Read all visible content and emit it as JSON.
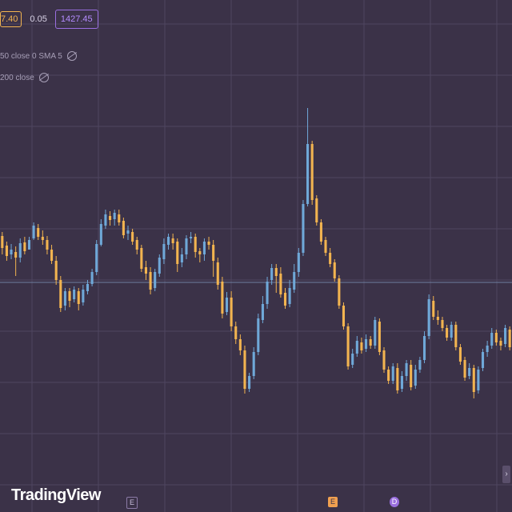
{
  "header": {
    "price_low": "7.40",
    "price_change": "0.05",
    "price_high": "1427.45"
  },
  "indicators": [
    {
      "label": "50 close 0 SMA 5",
      "icon": "eye-slash-icon"
    },
    {
      "label": "200 close",
      "icon": "eye-slash-icon"
    }
  ],
  "footer": {
    "logo": "TradingView",
    "events": [
      {
        "label": "E",
        "color": "#8b7aa6"
      },
      {
        "label": "E",
        "color": "#f0a050"
      },
      {
        "label": "D",
        "color": "#9a6fe0"
      }
    ]
  },
  "colors": {
    "background": "#3b3248",
    "up": "#6fa8d8",
    "down": "#f2b450",
    "grid": "#4f4660",
    "price_line": "#6f7fa0"
  },
  "chart_data": {
    "type": "candlestick",
    "title": "",
    "xlabel": "",
    "ylabel": "",
    "ylim": [
      0,
      640
    ],
    "reference_line": 353,
    "candles": [
      [
        295,
        310,
        290,
        318
      ],
      [
        307,
        320,
        302,
        326
      ],
      [
        318,
        312,
        305,
        324
      ],
      [
        315,
        322,
        308,
        345
      ],
      [
        322,
        304,
        298,
        328
      ],
      [
        303,
        314,
        296,
        318
      ],
      [
        312,
        300,
        296,
        306
      ],
      [
        298,
        282,
        278,
        300
      ],
      [
        285,
        296,
        280,
        300
      ],
      [
        296,
        300,
        288,
        306
      ],
      [
        300,
        312,
        295,
        318
      ],
      [
        312,
        326,
        306,
        330
      ],
      [
        326,
        350,
        320,
        356
      ],
      [
        350,
        385,
        345,
        390
      ],
      [
        382,
        364,
        360,
        388
      ],
      [
        364,
        376,
        360,
        384
      ],
      [
        374,
        362,
        358,
        378
      ],
      [
        364,
        380,
        360,
        388
      ],
      [
        378,
        362,
        356,
        382
      ],
      [
        364,
        355,
        350,
        368
      ],
      [
        355,
        340,
        336,
        358
      ],
      [
        340,
        305,
        300,
        344
      ],
      [
        306,
        280,
        274,
        308
      ],
      [
        282,
        268,
        262,
        286
      ],
      [
        270,
        275,
        264,
        282
      ],
      [
        274,
        266,
        262,
        282
      ],
      [
        268,
        278,
        262,
        282
      ],
      [
        276,
        294,
        272,
        298
      ],
      [
        292,
        288,
        282,
        300
      ],
      [
        290,
        302,
        286,
        306
      ],
      [
        300,
        312,
        296,
        318
      ],
      [
        310,
        336,
        306,
        340
      ],
      [
        334,
        342,
        326,
        350
      ],
      [
        340,
        362,
        334,
        368
      ],
      [
        360,
        340,
        336,
        364
      ],
      [
        342,
        322,
        318,
        346
      ],
      [
        324,
        305,
        298,
        330
      ],
      [
        306,
        296,
        292,
        312
      ],
      [
        298,
        304,
        292,
        312
      ],
      [
        302,
        330,
        298,
        340
      ],
      [
        328,
        318,
        310,
        334
      ],
      [
        318,
        298,
        294,
        324
      ],
      [
        298,
        296,
        290,
        304
      ],
      [
        296,
        315,
        292,
        322
      ],
      [
        314,
        318,
        310,
        328
      ],
      [
        318,
        302,
        298,
        326
      ],
      [
        302,
        306,
        296,
        312
      ],
      [
        306,
        326,
        300,
        346
      ],
      [
        328,
        356,
        322,
        362
      ],
      [
        352,
        392,
        346,
        398
      ],
      [
        390,
        372,
        365,
        394
      ],
      [
        372,
        408,
        364,
        414
      ],
      [
        408,
        424,
        402,
        430
      ],
      [
        424,
        438,
        418,
        444
      ],
      [
        438,
        486,
        432,
        492
      ],
      [
        486,
        470,
        466,
        490
      ],
      [
        470,
        440,
        434,
        474
      ],
      [
        440,
        398,
        392,
        444
      ],
      [
        400,
        380,
        370,
        404
      ],
      [
        380,
        352,
        346,
        386
      ],
      [
        350,
        335,
        330,
        356
      ],
      [
        335,
        345,
        330,
        366
      ],
      [
        342,
        368,
        334,
        372
      ],
      [
        366,
        382,
        360,
        386
      ],
      [
        380,
        360,
        350,
        384
      ],
      [
        362,
        340,
        330,
        366
      ],
      [
        340,
        316,
        310,
        346
      ],
      [
        316,
        255,
        250,
        320
      ],
      [
        255,
        180,
        135,
        258
      ],
      [
        180,
        250,
        176,
        256
      ],
      [
        248,
        278,
        244,
        282
      ],
      [
        278,
        302,
        274,
        306
      ],
      [
        300,
        316,
        296,
        320
      ],
      [
        316,
        330,
        310,
        334
      ],
      [
        328,
        348,
        324,
        352
      ],
      [
        348,
        382,
        344,
        386
      ],
      [
        382,
        408,
        378,
        412
      ],
      [
        408,
        458,
        404,
        462
      ],
      [
        456,
        442,
        436,
        460
      ],
      [
        442,
        426,
        420,
        446
      ],
      [
        428,
        438,
        422,
        442
      ],
      [
        436,
        424,
        418,
        440
      ],
      [
        424,
        432,
        420,
        436
      ],
      [
        432,
        400,
        396,
        436
      ],
      [
        402,
        440,
        398,
        444
      ],
      [
        438,
        462,
        434,
        466
      ],
      [
        462,
        476,
        458,
        480
      ],
      [
        476,
        458,
        454,
        480
      ],
      [
        460,
        488,
        454,
        492
      ],
      [
        486,
        470,
        464,
        490
      ],
      [
        470,
        454,
        450,
        476
      ],
      [
        456,
        484,
        450,
        488
      ],
      [
        482,
        462,
        456,
        486
      ],
      [
        462,
        450,
        446,
        466
      ],
      [
        450,
        420,
        414,
        454
      ],
      [
        420,
        374,
        368,
        424
      ],
      [
        376,
        396,
        370,
        400
      ],
      [
        396,
        400,
        388,
        406
      ],
      [
        400,
        410,
        396,
        414
      ],
      [
        410,
        422,
        406,
        426
      ],
      [
        422,
        406,
        402,
        426
      ],
      [
        406,
        434,
        402,
        438
      ],
      [
        434,
        452,
        430,
        456
      ],
      [
        450,
        472,
        446,
        476
      ],
      [
        470,
        460,
        454,
        474
      ],
      [
        460,
        490,
        456,
        498
      ],
      [
        488,
        462,
        458,
        492
      ],
      [
        460,
        440,
        436,
        464
      ],
      [
        440,
        432,
        426,
        446
      ],
      [
        432,
        416,
        410,
        436
      ],
      [
        416,
        428,
        412,
        432
      ],
      [
        426,
        432,
        422,
        438
      ],
      [
        430,
        410,
        406,
        434
      ],
      [
        412,
        434,
        408,
        438
      ]
    ]
  }
}
